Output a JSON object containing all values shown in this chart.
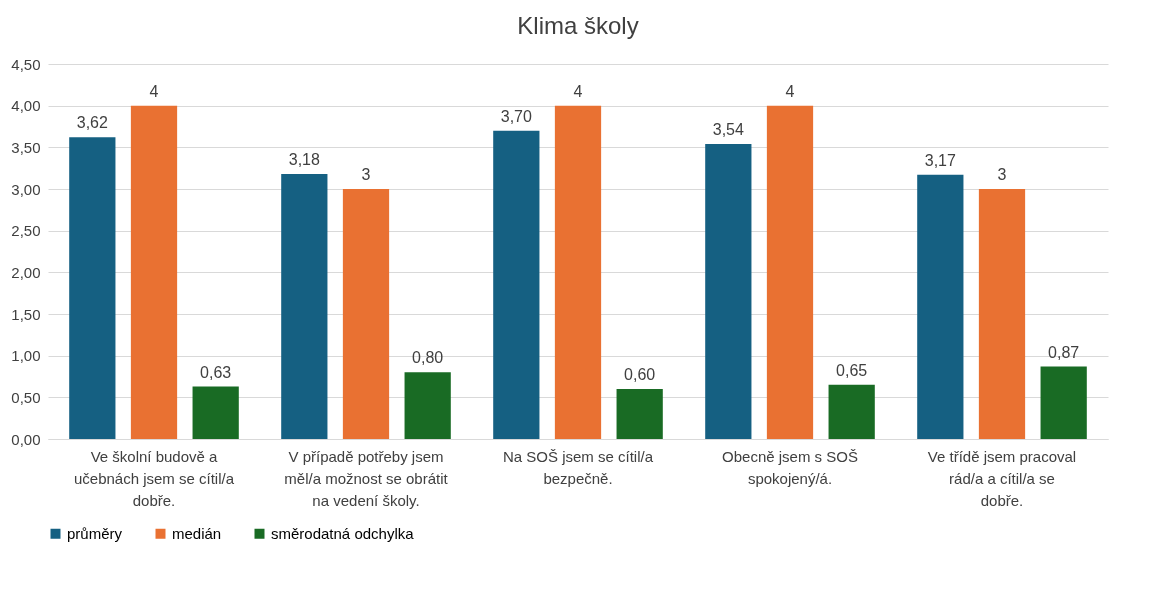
{
  "chart_data": {
    "type": "bar",
    "title": "Klima školy",
    "categories": [
      "Ve školní budově a učebnách jsem se cítil/a dobře.",
      "V případě potřeby jsem měl/a možnost se obrátit na vedení školy.",
      "Na SOŠ jsem se cítil/a bezpečně.",
      "Obecně jsem s SOŠ spokojený/á.",
      "Ve třídě jsem pracoval rád/a a cítil/a se dobře."
    ],
    "series": [
      {
        "name": "průměry",
        "color": "#156082",
        "values": [
          3.62,
          3.18,
          3.7,
          3.54,
          3.17
        ],
        "value_labels": [
          "3,62",
          "3,18",
          "3,70",
          "3,54",
          "3,17"
        ]
      },
      {
        "name": "medián",
        "color": "#e97132",
        "values": [
          4,
          3,
          4,
          4,
          3
        ],
        "value_labels": [
          "4",
          "3",
          "4",
          "4",
          "3"
        ]
      },
      {
        "name": "směrodatná odchylka",
        "color": "#196b24",
        "values": [
          0.63,
          0.8,
          0.6,
          0.65,
          0.87
        ],
        "value_labels": [
          "0,63",
          "0,80",
          "0,60",
          "0,65",
          "0,87"
        ]
      }
    ],
    "ylim": [
      0,
      4.5
    ],
    "yticks": [
      {
        "value": 0,
        "label": "0,00"
      },
      {
        "value": 0.5,
        "label": "0,50"
      },
      {
        "value": 1,
        "label": "1,00"
      },
      {
        "value": 1.5,
        "label": "1,50"
      },
      {
        "value": 2,
        "label": "2,00"
      },
      {
        "value": 2.5,
        "label": "2,50"
      },
      {
        "value": 3,
        "label": "3,00"
      },
      {
        "value": 3.5,
        "label": "3,50"
      },
      {
        "value": 4,
        "label": "4,00"
      },
      {
        "value": 4.5,
        "label": "4,50"
      }
    ],
    "grid": "y",
    "legend": "bottom"
  }
}
